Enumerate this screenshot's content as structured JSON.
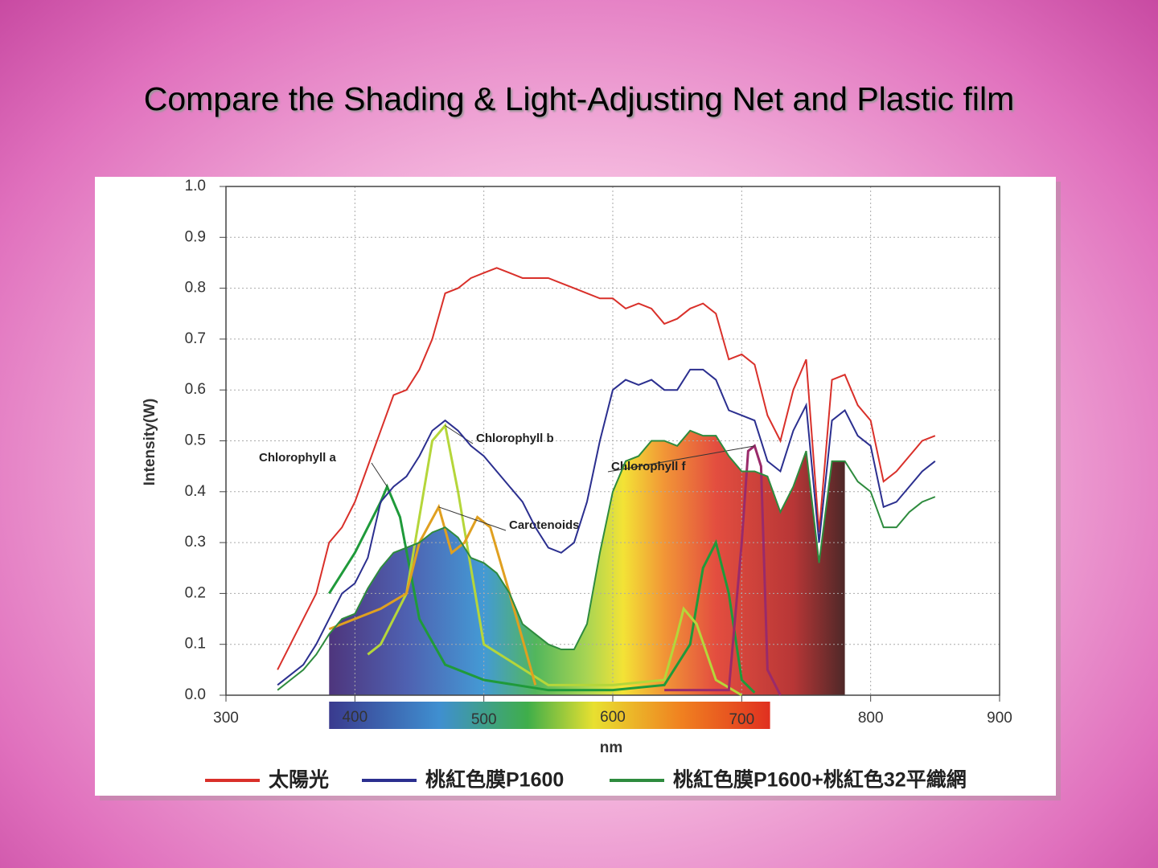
{
  "chart_data": {
    "type": "line",
    "title": "Compare the Shading & Light-Adjusting Net and Plastic film",
    "x_label": "nm",
    "y_label": "Intensity(W)",
    "xlim": [
      300,
      900
    ],
    "ylim": [
      0,
      1.0
    ],
    "xticks": [
      300,
      400,
      500,
      600,
      700,
      800,
      900
    ],
    "yticks": [
      {
        "value": 0,
        "label": "0.0"
      },
      0.1,
      0.2,
      0.3,
      0.4,
      0.5,
      0.6,
      0.7,
      0.8,
      0.9,
      {
        "value": 1.0,
        "label": "1.0"
      }
    ],
    "grid": true,
    "legend": "bottom",
    "x": [
      340,
      350,
      360,
      370,
      380,
      390,
      400,
      410,
      420,
      430,
      440,
      450,
      460,
      470,
      480,
      490,
      500,
      510,
      520,
      530,
      540,
      550,
      560,
      570,
      580,
      590,
      600,
      610,
      620,
      630,
      640,
      650,
      660,
      670,
      680,
      690,
      700,
      710,
      720,
      730,
      740,
      750,
      760,
      770,
      780,
      790,
      800,
      810,
      820,
      830,
      840,
      850
    ],
    "series": [
      {
        "name": "太陽光",
        "color": "#d9302a",
        "values": [
          0.05,
          0.1,
          0.15,
          0.2,
          0.3,
          0.33,
          0.38,
          0.45,
          0.52,
          0.59,
          0.6,
          0.64,
          0.7,
          0.79,
          0.8,
          0.82,
          0.83,
          0.84,
          0.83,
          0.82,
          0.82,
          0.82,
          0.81,
          0.8,
          0.79,
          0.78,
          0.78,
          0.76,
          0.77,
          0.76,
          0.73,
          0.74,
          0.76,
          0.77,
          0.75,
          0.66,
          0.67,
          0.65,
          0.55,
          0.5,
          0.6,
          0.66,
          0.32,
          0.62,
          0.63,
          0.57,
          0.54,
          0.42,
          0.44,
          0.47,
          0.5,
          0.51
        ]
      },
      {
        "name": "桃紅色膜P1600",
        "color": "#2b2f8f",
        "values": [
          0.02,
          0.04,
          0.06,
          0.1,
          0.15,
          0.2,
          0.22,
          0.27,
          0.38,
          0.41,
          0.43,
          0.47,
          0.52,
          0.54,
          0.52,
          0.49,
          0.47,
          0.44,
          0.41,
          0.38,
          0.33,
          0.29,
          0.28,
          0.3,
          0.38,
          0.5,
          0.6,
          0.62,
          0.61,
          0.62,
          0.6,
          0.6,
          0.64,
          0.64,
          0.62,
          0.56,
          0.55,
          0.54,
          0.46,
          0.44,
          0.52,
          0.57,
          0.3,
          0.54,
          0.56,
          0.51,
          0.49,
          0.37,
          0.38,
          0.41,
          0.44,
          0.46
        ]
      },
      {
        "name": "桃紅色膜P1600+桃紅色32平織網",
        "color": "#2e8b3e",
        "values": [
          0.01,
          0.03,
          0.05,
          0.08,
          0.12,
          0.15,
          0.16,
          0.21,
          0.25,
          0.28,
          0.29,
          0.3,
          0.32,
          0.33,
          0.31,
          0.27,
          0.26,
          0.24,
          0.2,
          0.14,
          0.12,
          0.1,
          0.09,
          0.09,
          0.14,
          0.28,
          0.4,
          0.46,
          0.47,
          0.5,
          0.5,
          0.49,
          0.52,
          0.51,
          0.51,
          0.47,
          0.44,
          0.44,
          0.43,
          0.36,
          0.41,
          0.48,
          0.26,
          0.46,
          0.46,
          0.42,
          0.4,
          0.33,
          0.33,
          0.36,
          0.38,
          0.39
        ]
      }
    ],
    "annotated_series": [
      {
        "name": "Chlorophyll a",
        "color": "#1f9a3a",
        "x": [
          380,
          400,
          420,
          425,
          435,
          450,
          470,
          500,
          550,
          600,
          640,
          660,
          670,
          680,
          690,
          700,
          710
        ],
        "values": [
          0.2,
          0.28,
          0.38,
          0.41,
          0.35,
          0.15,
          0.06,
          0.03,
          0.01,
          0.01,
          0.02,
          0.1,
          0.25,
          0.3,
          0.2,
          0.03,
          0.005
        ]
      },
      {
        "name": "Chlorophyll b",
        "color": "#b5d63a",
        "x": [
          410,
          420,
          440,
          460,
          470,
          480,
          500,
          550,
          600,
          640,
          650,
          655,
          665,
          680,
          700
        ],
        "values": [
          0.08,
          0.1,
          0.2,
          0.5,
          0.53,
          0.4,
          0.1,
          0.02,
          0.02,
          0.03,
          0.12,
          0.17,
          0.14,
          0.03,
          0.0
        ]
      },
      {
        "name": "Carotenoids",
        "color": "#e0a020",
        "x": [
          380,
          420,
          440,
          450,
          465,
          475,
          485,
          495,
          505,
          520,
          540
        ],
        "values": [
          0.13,
          0.17,
          0.2,
          0.3,
          0.37,
          0.28,
          0.3,
          0.35,
          0.33,
          0.2,
          0.02
        ]
      },
      {
        "name": "Chlorophyll f",
        "color": "#9a2a6a",
        "x": [
          640,
          690,
          700,
          705,
          710,
          715,
          720,
          730
        ],
        "values": [
          0.01,
          0.01,
          0.3,
          0.48,
          0.49,
          0.45,
          0.05,
          0.0
        ]
      }
    ],
    "spectrum_band_labels": [
      400,
      500,
      600,
      700
    ],
    "spectrum_range": [
      380,
      722
    ]
  }
}
